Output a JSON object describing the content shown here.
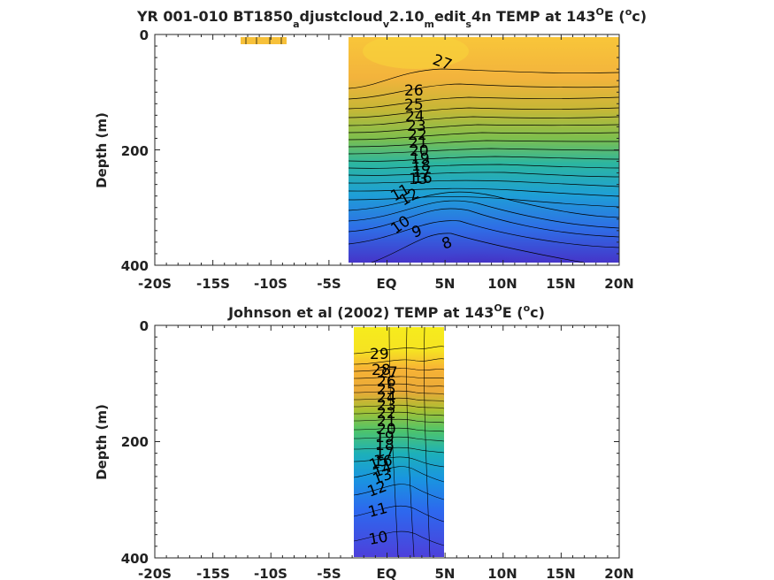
{
  "chart_data": [
    {
      "type": "contour",
      "title_parts": {
        "pre": "YR 001-010 BT1850",
        "s1": "a",
        "m1": "djustcloud",
        "s2": "v",
        "m2": "2.10",
        "s3": "m",
        "m3": "edit",
        "s4": "s",
        "m4": "4n TEMP at 143",
        "sup1": "O",
        "m5": "E (",
        "sup2": "o",
        "post": "c)"
      },
      "ylabel": "Depth (m)",
      "xlim": [
        -20,
        20
      ],
      "ylim": [
        0,
        400
      ],
      "y_reversed": true,
      "x_ticks": [
        -20,
        -15,
        -10,
        -5,
        0,
        5,
        10,
        15,
        20
      ],
      "x_tick_labels": [
        "-20S",
        "-15S",
        "-10S",
        "-5S",
        "EQ",
        "5N",
        "10N",
        "15N",
        "20N"
      ],
      "y_ticks": [
        0,
        200,
        400
      ],
      "y_tick_labels": [
        "0",
        "200",
        "400"
      ],
      "data_extent": {
        "lon": [
          -3.3,
          20
        ],
        "depth": [
          0,
          395
        ]
      },
      "isotherm_labels": [
        "27",
        "26",
        "25",
        "24",
        "23",
        "22",
        "21",
        "20",
        "19",
        "18",
        "17",
        "16",
        "15",
        "14",
        "13",
        "12",
        "11",
        "10",
        "9",
        "8"
      ],
      "temperature_profile": {
        "depth": [
          0,
          100,
          130,
          160,
          200,
          250,
          300,
          350,
          395
        ],
        "temp_equator": [
          27.5,
          26.5,
          25,
          23,
          18,
          13,
          11,
          9.5,
          8.5
        ],
        "temp_10N": [
          27.5,
          26,
          24,
          22,
          19,
          16,
          13,
          10.5,
          9
        ],
        "temp_20N": [
          27,
          25.5,
          24,
          22.5,
          20,
          17,
          14,
          12,
          10.5
        ]
      },
      "colorscale": [
        "#3d26a8",
        "#2f80f0",
        "#1db3c5",
        "#59c26d",
        "#b5c13a",
        "#f5b434",
        "#f6e01e"
      ]
    },
    {
      "type": "contour",
      "title_parts": {
        "pre": "Johnson et al (2002) TEMP at 143",
        "sup1": "O",
        "m5": "E (",
        "sup2": "o",
        "post": "c)"
      },
      "ylabel": "Depth (m)",
      "xlim": [
        -20,
        20
      ],
      "ylim": [
        0,
        400
      ],
      "y_reversed": true,
      "x_ticks": [
        -20,
        -15,
        -10,
        -5,
        0,
        5,
        10,
        15,
        20
      ],
      "x_tick_labels": [
        "-20S",
        "-15S",
        "-10S",
        "-5S",
        "EQ",
        "5N",
        "10N",
        "15N",
        "20N"
      ],
      "y_ticks": [
        0,
        200,
        400
      ],
      "y_tick_labels": [
        "0",
        "200",
        "400"
      ],
      "data_extent": {
        "lon": [
          -2.8,
          5
        ],
        "depth": [
          0,
          400
        ]
      },
      "isotherm_labels": [
        "29",
        "28",
        "27",
        "26",
        "25",
        "24",
        "23",
        "22",
        "21",
        "20",
        "19",
        "18",
        "17",
        "16",
        "15",
        "14",
        "13",
        "12",
        "11",
        "10"
      ],
      "temperature_profile": {
        "depth": [
          0,
          50,
          80,
          120,
          160,
          200,
          250,
          300,
          350,
          400
        ],
        "temp_equator": [
          29.5,
          29,
          27,
          24,
          21,
          17.5,
          14,
          12,
          11,
          10.5
        ]
      },
      "colorscale": [
        "#3d26a8",
        "#2f80f0",
        "#1db3c5",
        "#59c26d",
        "#b5c13a",
        "#f5b434",
        "#f6e01e"
      ]
    }
  ]
}
